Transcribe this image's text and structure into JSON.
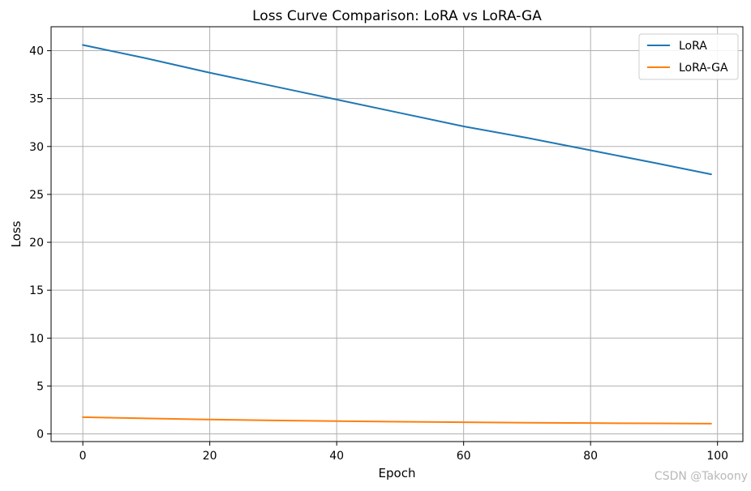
{
  "chart_data": {
    "type": "line",
    "title": "Loss Curve Comparison: LoRA vs LoRA-GA",
    "xlabel": "Epoch",
    "ylabel": "Loss",
    "xlim": [
      -5,
      104
    ],
    "ylim": [
      -0.8,
      42.5
    ],
    "xticks": [
      0,
      20,
      40,
      60,
      80,
      100
    ],
    "yticks": [
      0,
      5,
      10,
      15,
      20,
      25,
      30,
      35,
      40
    ],
    "grid": true,
    "legend_position": "top-right",
    "series": [
      {
        "name": "LoRA",
        "color": "#1f77b4",
        "x": [
          0,
          10,
          20,
          30,
          40,
          50,
          60,
          70,
          80,
          90,
          99
        ],
        "y": [
          40.6,
          39.2,
          37.7,
          36.3,
          34.9,
          33.5,
          32.1,
          30.9,
          29.6,
          28.3,
          27.1
        ]
      },
      {
        "name": "LoRA-GA",
        "color": "#ff7f0e",
        "x": [
          0,
          10,
          20,
          30,
          40,
          50,
          60,
          70,
          80,
          90,
          99
        ],
        "y": [
          1.75,
          1.62,
          1.5,
          1.41,
          1.33,
          1.27,
          1.22,
          1.17,
          1.13,
          1.1,
          1.07
        ]
      }
    ]
  },
  "watermark": "CSDN @Takoony"
}
